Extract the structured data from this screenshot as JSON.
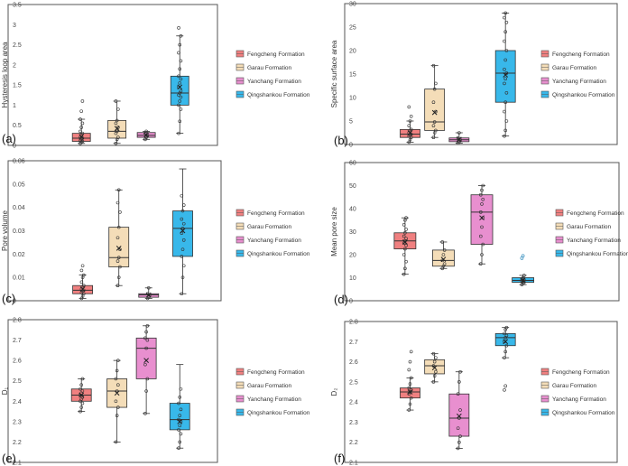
{
  "colors": {
    "Fengcheng Formation": "#f08080",
    "Garau Formation": "#f4ddb8",
    "Yanchang Formation": "#e88fcf",
    "Qingshankou Formation": "#38b8ea",
    "stroke": "#333333"
  },
  "chart_data": [
    {
      "type": "box",
      "panel": "(a)",
      "ylabel": "Hysteresis loop area",
      "ylim": [
        0,
        3.5
      ],
      "yticks": [
        "0",
        "0.5",
        "1",
        "1.5",
        "2",
        "2.5",
        "3",
        "3.5"
      ],
      "legend": [
        "Fengcheng Formation",
        "Garau Formation",
        "Yanchang Formation",
        "Qingshankou Formation"
      ],
      "series": [
        {
          "name": "Fengcheng Formation",
          "min": 0.05,
          "q1": 0.1,
          "median": 0.18,
          "q3": 0.3,
          "max": 0.65,
          "mean": 0.22,
          "points": [
            0.05,
            0.08,
            0.1,
            0.12,
            0.15,
            0.18,
            0.2,
            0.25,
            0.3,
            0.35,
            0.45,
            0.55,
            0.65,
            0.85,
            1.1
          ]
        },
        {
          "name": "Garau Formation",
          "min": 0.05,
          "q1": 0.18,
          "median": 0.35,
          "q3": 0.62,
          "max": 1.1,
          "mean": 0.42,
          "points": [
            0.05,
            0.15,
            0.2,
            0.3,
            0.35,
            0.45,
            0.55,
            0.62,
            0.9,
            1.1
          ]
        },
        {
          "name": "Yanchang Formation",
          "min": 0.15,
          "q1": 0.2,
          "median": 0.25,
          "q3": 0.32,
          "max": 0.35,
          "mean": 0.26,
          "points": [
            0.15,
            0.2,
            0.25,
            0.3,
            0.35
          ]
        },
        {
          "name": "Qingshankou Formation",
          "min": 0.3,
          "q1": 1.0,
          "median": 1.3,
          "q3": 1.72,
          "max": 2.72,
          "mean": 1.45,
          "points": [
            0.3,
            0.6,
            0.9,
            1.0,
            1.1,
            1.2,
            1.25,
            1.3,
            1.35,
            1.45,
            1.55,
            1.65,
            1.72,
            1.9,
            2.1,
            2.3,
            2.5,
            2.72,
            2.92
          ]
        }
      ]
    },
    {
      "type": "box",
      "panel": "(b)",
      "ylabel": "Specific surface area",
      "ylim": [
        0,
        30
      ],
      "yticks": [
        "0",
        "5",
        "10",
        "15",
        "20",
        "25",
        "30"
      ],
      "legend": [
        "Fengcheng Formation",
        "Garau Formation",
        "Yanchang Formation",
        "Qingshankou Formation"
      ],
      "series": [
        {
          "name": "Fengcheng Formation",
          "min": 0.5,
          "q1": 1.5,
          "median": 2.2,
          "q3": 3.2,
          "max": 5.0,
          "mean": 2.5,
          "points": [
            0.5,
            1.0,
            1.5,
            1.8,
            2.0,
            2.2,
            2.5,
            3.0,
            3.2,
            4.0,
            5.0,
            6.0,
            8.0
          ]
        },
        {
          "name": "Garau Formation",
          "min": 1.5,
          "q1": 3.0,
          "median": 4.8,
          "q3": 11.8,
          "max": 16.8,
          "mean": 6.8,
          "points": [
            1.5,
            2.5,
            3.0,
            4.0,
            4.8,
            7.0,
            9.0,
            11.8,
            13.0,
            16.8
          ]
        },
        {
          "name": "Yanchang Formation",
          "min": 0.3,
          "q1": 0.6,
          "median": 1.0,
          "q3": 1.4,
          "max": 2.5,
          "mean": 1.1,
          "points": [
            0.3,
            0.6,
            1.0,
            1.4,
            2.5
          ]
        },
        {
          "name": "Qingshankou Formation",
          "min": 1.8,
          "q1": 9.0,
          "median": 15.2,
          "q3": 20.0,
          "max": 28.0,
          "mean": 14.8,
          "points": [
            1.8,
            3.0,
            5.0,
            7.0,
            9.0,
            11.0,
            13.0,
            14.0,
            15.2,
            16.0,
            18.0,
            20.0,
            22.0,
            24.0,
            26.0,
            27.0,
            28.0
          ]
        }
      ]
    },
    {
      "type": "box",
      "panel": "(c)",
      "ylabel": "Pore volume",
      "ylim": [
        0,
        0.06
      ],
      "yticks": [
        "0",
        "0.01",
        "0.02",
        "0.03",
        "0.04",
        "0.05",
        "0.06"
      ],
      "legend": [
        "Fengcheng Formation",
        "Garau Formation",
        "Yanchang Formation",
        "Qingshankou Formation"
      ],
      "series": [
        {
          "name": "Fengcheng Formation",
          "min": 0.001,
          "q1": 0.003,
          "median": 0.0045,
          "q3": 0.0065,
          "max": 0.011,
          "mean": 0.005,
          "points": [
            0.001,
            0.002,
            0.003,
            0.0035,
            0.004,
            0.0045,
            0.005,
            0.006,
            0.0065,
            0.008,
            0.01,
            0.011,
            0.013,
            0.015
          ]
        },
        {
          "name": "Garau Formation",
          "min": 0.0065,
          "q1": 0.0145,
          "median": 0.0185,
          "q3": 0.0315,
          "max": 0.0475,
          "mean": 0.0225,
          "points": [
            0.0065,
            0.01,
            0.0145,
            0.017,
            0.0185,
            0.022,
            0.027,
            0.0315,
            0.038,
            0.042,
            0.0475
          ]
        },
        {
          "name": "Yanchang Formation",
          "min": 0.001,
          "q1": 0.0015,
          "median": 0.0025,
          "q3": 0.003,
          "max": 0.0055,
          "mean": 0.0025,
          "points": [
            0.001,
            0.0015,
            0.0025,
            0.003,
            0.0055
          ]
        },
        {
          "name": "Qingshankou Formation",
          "min": 0.003,
          "q1": 0.019,
          "median": 0.031,
          "q3": 0.0385,
          "max": 0.0565,
          "mean": 0.03,
          "points": [
            0.003,
            0.01,
            0.015,
            0.019,
            0.022,
            0.026,
            0.029,
            0.031,
            0.033,
            0.035,
            0.0385,
            0.041,
            0.045
          ]
        }
      ]
    },
    {
      "type": "box",
      "panel": "(d)",
      "ylabel": "Mean pore size",
      "ylim": [
        0,
        60
      ],
      "yticks": [
        "0",
        "10",
        "20",
        "30",
        "40",
        "50",
        "60"
      ],
      "legend": [
        "Fengcheng Formation",
        "Garau Formation",
        "Yanchang Formation",
        "Qingshankou Formation"
      ],
      "series": [
        {
          "name": "Fengcheng Formation",
          "min": 11.5,
          "q1": 22.5,
          "median": 26.0,
          "q3": 29.5,
          "max": 36.0,
          "mean": 25.5,
          "points": [
            11.5,
            14.0,
            17.0,
            20.0,
            22.5,
            24.0,
            25.0,
            26.0,
            27.0,
            28.0,
            29.5,
            31.0,
            33.0,
            35.0,
            36.0
          ]
        },
        {
          "name": "Garau Formation",
          "min": 14.0,
          "q1": 15.0,
          "median": 17.5,
          "q3": 22.0,
          "max": 25.5,
          "mean": 18.0,
          "points": [
            14.0,
            15.0,
            16.0,
            17.5,
            20.0,
            22.0,
            25.5
          ]
        },
        {
          "name": "Yanchang Formation",
          "min": 16.0,
          "q1": 24.5,
          "median": 38.5,
          "q3": 46.0,
          "max": 50.0,
          "mean": 36.0,
          "points": [
            16.0,
            20.0,
            24.5,
            28.0,
            32.0,
            36.0,
            38.5,
            42.0,
            44.0,
            46.0,
            48.0,
            50.0
          ]
        },
        {
          "name": "Qingshankou Formation",
          "min": 7.0,
          "q1": 8.0,
          "median": 8.8,
          "q3": 10.0,
          "max": 11.0,
          "mean": 8.8,
          "points": [
            7.0,
            7.5,
            8.0,
            8.5,
            8.8,
            9.0,
            9.5,
            10.0,
            11.0,
            18.5,
            19.5
          ]
        }
      ]
    },
    {
      "type": "box",
      "panel": "(e)",
      "ylabel": "D₁",
      "ylim": [
        2.1,
        2.8
      ],
      "yticks": [
        "2.1",
        "2.2",
        "2.3",
        "2.4",
        "2.5",
        "2.6",
        "2.7",
        "2.8"
      ],
      "legend": [
        "Fengcheng Formation",
        "Garau Formation",
        "Yanchang Formation",
        "Qingshankou Formation"
      ],
      "series": [
        {
          "name": "Fengcheng Formation",
          "min": 2.35,
          "q1": 2.4,
          "median": 2.43,
          "q3": 2.46,
          "max": 2.51,
          "mean": 2.43,
          "points": [
            2.35,
            2.37,
            2.39,
            2.4,
            2.41,
            2.42,
            2.43,
            2.44,
            2.45,
            2.46,
            2.48,
            2.51
          ]
        },
        {
          "name": "Garau Formation",
          "min": 2.2,
          "q1": 2.37,
          "median": 2.45,
          "q3": 2.51,
          "max": 2.6,
          "mean": 2.44,
          "points": [
            2.2,
            2.33,
            2.37,
            2.4,
            2.45,
            2.48,
            2.51,
            2.55,
            2.6
          ]
        },
        {
          "name": "Yanchang Formation",
          "min": 2.34,
          "q1": 2.51,
          "median": 2.66,
          "q3": 2.71,
          "max": 2.77,
          "mean": 2.6,
          "points": [
            2.34,
            2.45,
            2.51,
            2.58,
            2.66,
            2.7,
            2.71,
            2.74,
            2.77
          ]
        },
        {
          "name": "Qingshankou Formation",
          "min": 2.17,
          "q1": 2.26,
          "median": 2.31,
          "q3": 2.39,
          "max": 2.58,
          "mean": 2.3,
          "points": [
            2.17,
            2.2,
            2.24,
            2.26,
            2.28,
            2.3,
            2.31,
            2.33,
            2.36,
            2.39,
            2.42,
            2.46
          ]
        }
      ]
    },
    {
      "type": "box",
      "panel": "(f)",
      "ylabel": "D₂",
      "ylim": [
        2.1,
        2.8
      ],
      "yticks": [
        "2.1",
        "2.2",
        "2.3",
        "2.4",
        "2.5",
        "2.6",
        "2.7",
        "2.8"
      ],
      "legend": [
        "Fengcheng Formation",
        "Garau Formation",
        "Yanchang Formation",
        "Qingshankou Formation"
      ],
      "series": [
        {
          "name": "Fengcheng Formation",
          "min": 2.36,
          "q1": 2.42,
          "median": 2.45,
          "q3": 2.47,
          "max": 2.52,
          "mean": 2.45,
          "points": [
            2.36,
            2.39,
            2.42,
            2.44,
            2.45,
            2.46,
            2.47,
            2.49,
            2.52,
            2.56,
            2.6,
            2.65
          ]
        },
        {
          "name": "Garau Formation",
          "min": 2.5,
          "q1": 2.54,
          "median": 2.58,
          "q3": 2.61,
          "max": 2.64,
          "mean": 2.57,
          "points": [
            2.5,
            2.53,
            2.55,
            2.58,
            2.6,
            2.62,
            2.64
          ]
        },
        {
          "name": "Yanchang Formation",
          "min": 2.17,
          "q1": 2.23,
          "median": 2.32,
          "q3": 2.44,
          "max": 2.55,
          "mean": 2.33,
          "points": [
            2.17,
            2.2,
            2.23,
            2.27,
            2.32,
            2.36,
            2.44,
            2.5,
            2.55
          ]
        },
        {
          "name": "Qingshankou Formation",
          "min": 2.62,
          "q1": 2.68,
          "median": 2.72,
          "q3": 2.74,
          "max": 2.77,
          "mean": 2.7,
          "points": [
            2.62,
            2.65,
            2.68,
            2.7,
            2.72,
            2.73,
            2.74,
            2.76,
            2.77,
            2.46,
            2.48
          ]
        }
      ]
    }
  ]
}
